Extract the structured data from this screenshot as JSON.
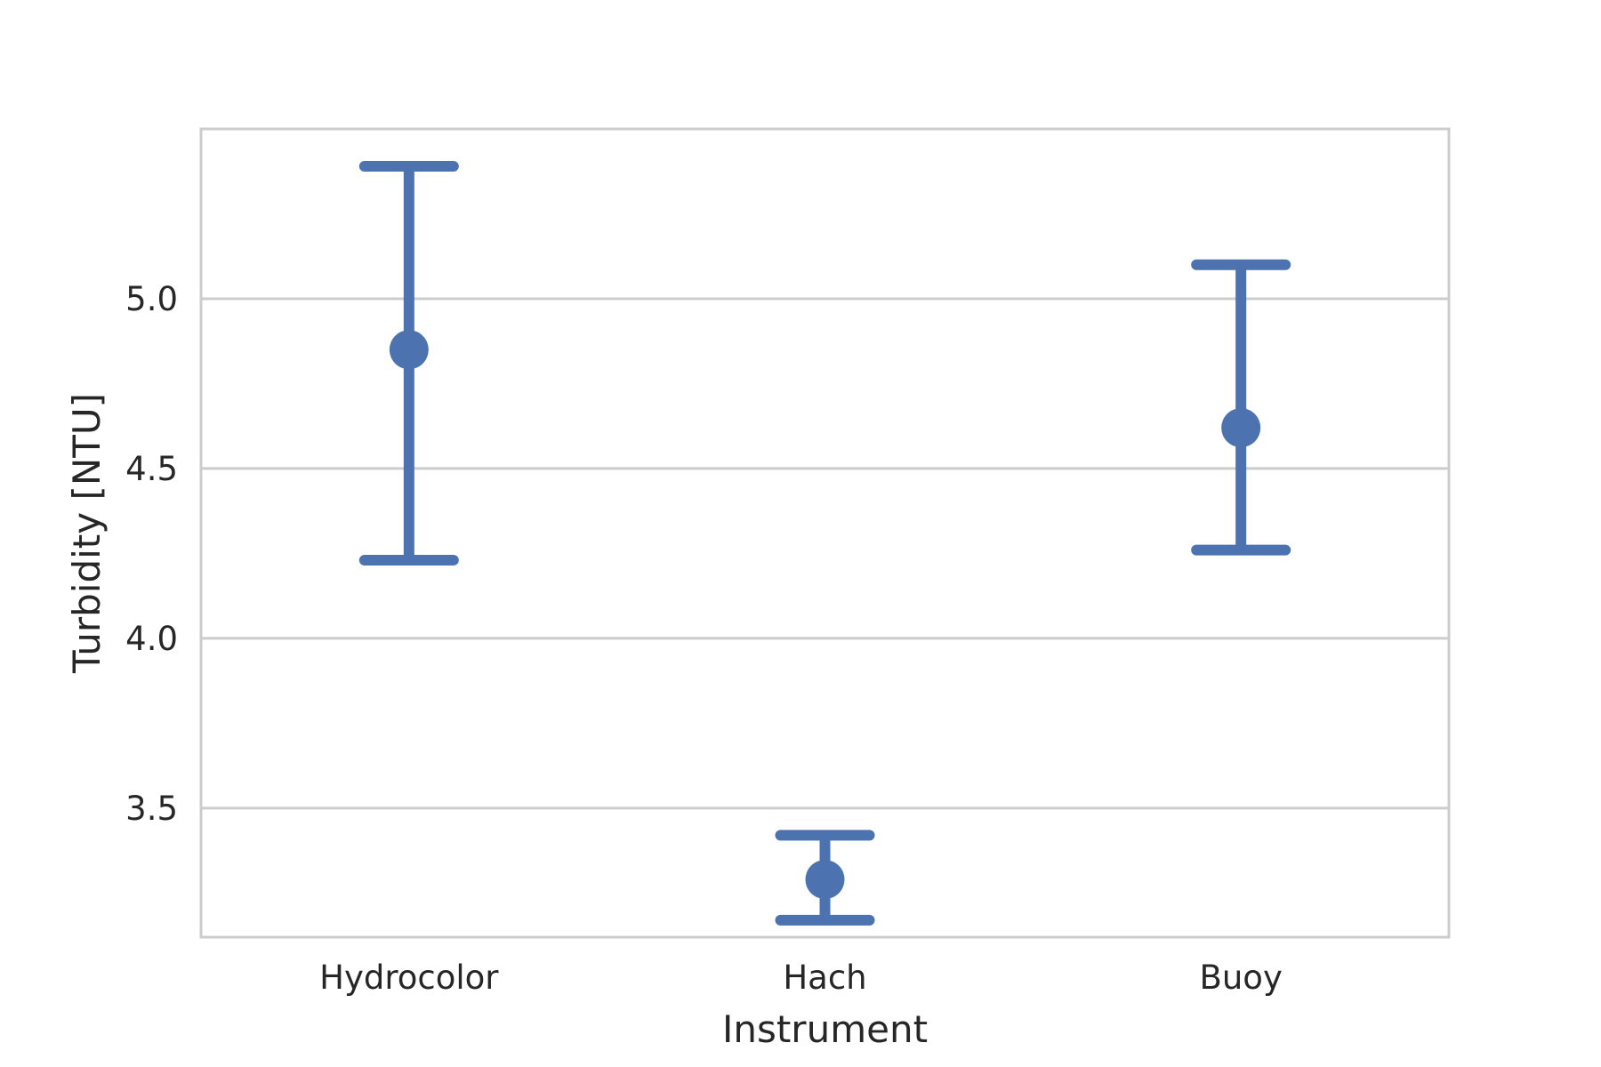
{
  "chart_data": {
    "type": "pointplot",
    "title": "",
    "xlabel": "Instrument",
    "ylabel": "Turbidity [NTU]",
    "categories": [
      "Hydrocolor",
      "Hach",
      "Buoy"
    ],
    "series": [
      {
        "values": [
          4.85,
          3.29,
          4.62
        ],
        "ci_low": [
          4.23,
          3.17,
          4.26
        ],
        "ci_high": [
          5.39,
          3.42,
          5.1
        ]
      }
    ],
    "ylim": [
      3.12,
      5.5
    ],
    "yticks": [
      3.5,
      4.0,
      4.5,
      5.0
    ],
    "ytick_labels": [
      "3.5",
      "4.0",
      "4.5",
      "5.0"
    ],
    "grid": "horizontal",
    "color": "#4C72B0",
    "grid_color": "#CCCCCC"
  }
}
